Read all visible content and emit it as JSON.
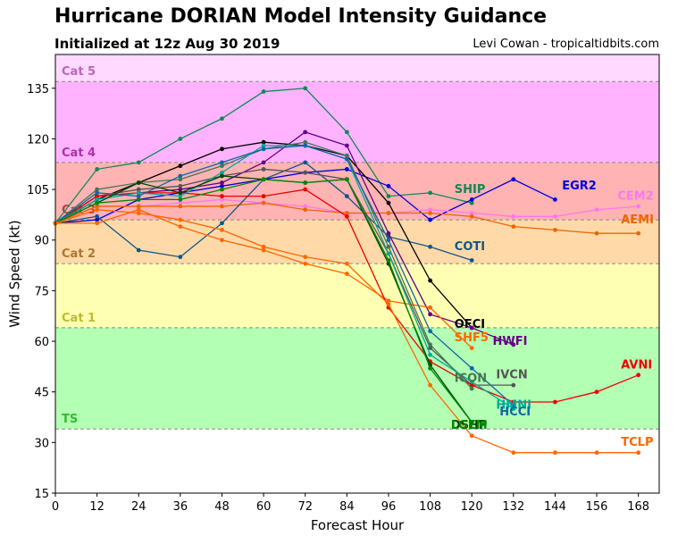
{
  "title": "Hurricane DORIAN Model Intensity Guidance",
  "subtitle": "Initialized at 12z Aug 30 2019",
  "credit": "Levi Cowan - tropicaltidbits.com",
  "chart_data": {
    "type": "line",
    "xlabel": "Forecast Hour",
    "ylabel": "Wind Speed (kt)",
    "xlim": [
      0,
      174
    ],
    "ylim": [
      15,
      145
    ],
    "xticks": [
      0,
      12,
      24,
      36,
      48,
      60,
      72,
      84,
      96,
      108,
      120,
      132,
      144,
      156,
      168
    ],
    "yticks": [
      15,
      30,
      45,
      60,
      75,
      90,
      105,
      120,
      135
    ],
    "grid": false,
    "bands": [
      {
        "label": "TS",
        "from": 34,
        "to": 64,
        "color": "#b3ffb3",
        "label_color": "#33bb33"
      },
      {
        "label": "Cat 1",
        "from": 64,
        "to": 83,
        "color": "#ffffb3",
        "label_color": "#bbbb33"
      },
      {
        "label": "Cat 2",
        "from": 83,
        "to": 96,
        "color": "#ffdaa8",
        "label_color": "#aa7733"
      },
      {
        "label": "Cat 3",
        "from": 96,
        "to": 113,
        "color": "#ffb3b3",
        "label_color": "#aa4444"
      },
      {
        "label": "Cat 4",
        "from": 113,
        "to": 137,
        "color": "#ffb3ff",
        "label_color": "#aa33aa"
      },
      {
        "label": "Cat 5",
        "from": 137,
        "to": 145,
        "color": "#ffd9ff",
        "label_color": "#bb66bb"
      }
    ],
    "series": [
      {
        "name": "SHIP",
        "color": "#118855",
        "x": [
          0,
          12,
          24,
          36,
          48,
          60,
          72,
          84,
          96,
          108,
          120
        ],
        "y": [
          95,
          111,
          113,
          120,
          126,
          134,
          135,
          122,
          103,
          104,
          101
        ],
        "label_x": 115,
        "label_y": 104
      },
      {
        "name": "EGR2",
        "color": "#0000dd",
        "x": [
          0,
          12,
          24,
          36,
          48,
          60,
          72,
          84,
          96,
          108,
          120,
          132,
          144
        ],
        "y": [
          95,
          96,
          102,
          104,
          106,
          108,
          110,
          111,
          106,
          96,
          102,
          108,
          102
        ],
        "label_x": 146,
        "label_y": 105
      },
      {
        "name": "CEM2",
        "color": "#ff77ee",
        "x": [
          0,
          12,
          24,
          36,
          48,
          60,
          72,
          84,
          96,
          108,
          120,
          132,
          144,
          156,
          168
        ],
        "y": [
          95,
          100,
          100,
          101,
          102,
          101,
          100,
          98,
          98,
          99,
          98,
          97,
          97,
          99,
          100
        ],
        "label_x": 162,
        "label_y": 102
      },
      {
        "name": "AEMI",
        "color": "#ee6600",
        "x": [
          0,
          12,
          24,
          36,
          48,
          60,
          72,
          84,
          96,
          108,
          120,
          132,
          144,
          156,
          168
        ],
        "y": [
          95,
          100,
          100,
          100,
          100,
          101,
          99,
          98,
          98,
          98,
          97,
          94,
          93,
          92,
          92
        ],
        "label_x": 163,
        "label_y": 95
      },
      {
        "name": "COTI",
        "color": "#115588",
        "x": [
          0,
          12,
          24,
          36,
          48,
          60,
          72,
          84,
          96,
          108,
          120
        ],
        "y": [
          95,
          97,
          87,
          85,
          95,
          108,
          113,
          103,
          91,
          88,
          84
        ],
        "label_x": 115,
        "label_y": 87
      },
      {
        "name": "OFCI",
        "color": "#000000",
        "x": [
          0,
          12,
          24,
          36,
          48,
          60,
          72,
          84,
          96,
          108,
          120
        ],
        "y": [
          95,
          102,
          107,
          112,
          117,
          119,
          118,
          115,
          101,
          78,
          64
        ],
        "label_x": 115,
        "label_y": 64
      },
      {
        "name": "HWFI",
        "color": "#660088",
        "x": [
          0,
          12,
          24,
          36,
          48,
          60,
          72,
          84,
          96,
          108,
          120,
          132
        ],
        "y": [
          95,
          103,
          104,
          105,
          107,
          113,
          122,
          118,
          92,
          68,
          64,
          59
        ],
        "label_x": 126,
        "label_y": 59
      },
      {
        "name": "SHF5",
        "color": "#ff6600",
        "x": [
          0,
          12,
          24,
          36,
          48,
          60,
          72,
          84,
          96,
          108,
          120
        ],
        "y": [
          95,
          95,
          99,
          94,
          90,
          87,
          83,
          80,
          72,
          70,
          58
        ],
        "label_x": 115,
        "label_y": 60
      },
      {
        "name": "IVCN",
        "color": "#555555",
        "x": [
          0,
          12,
          24,
          36,
          48,
          60,
          72,
          84,
          96,
          108,
          120,
          132
        ],
        "y": [
          95,
          103,
          105,
          106,
          109,
          111,
          110,
          108,
          86,
          58,
          47,
          47
        ],
        "label_x": 127,
        "label_y": 49
      },
      {
        "name": "AVNI",
        "color": "#ee0000",
        "x": [
          0,
          12,
          24,
          36,
          48,
          60,
          72,
          84,
          96,
          108,
          120,
          132,
          144,
          156,
          168
        ],
        "y": [
          95,
          103,
          104,
          104,
          103,
          103,
          105,
          97,
          70,
          54,
          47,
          42,
          42,
          45,
          50
        ],
        "label_x": 163,
        "label_y": 52
      },
      {
        "name": "ICON",
        "color": "#447755",
        "x": [
          0,
          12,
          24,
          36,
          48,
          60,
          72,
          84,
          96,
          108,
          120
        ],
        "y": [
          95,
          105,
          107,
          108,
          112,
          117,
          119,
          115,
          88,
          59,
          46
        ],
        "label_x": 115,
        "label_y": 48
      },
      {
        "name": "HMNI",
        "color": "#00aa99",
        "x": [
          0,
          12,
          24,
          36,
          48,
          60,
          72,
          84,
          96,
          108,
          120,
          132
        ],
        "y": [
          95,
          102,
          104,
          103,
          110,
          118,
          118,
          114,
          86,
          56,
          48,
          40
        ],
        "label_x": 127,
        "label_y": 40
      },
      {
        "name": "HCCI",
        "color": "#1166aa",
        "x": [
          0,
          12,
          24,
          36,
          48,
          60,
          72,
          84,
          96,
          108,
          120,
          132
        ],
        "y": [
          95,
          104,
          103,
          109,
          113,
          117,
          118,
          114,
          90,
          63,
          52,
          41
        ],
        "label_x": 128,
        "label_y": 38
      },
      {
        "name": "DSHP",
        "color": "#004400",
        "x": [
          0,
          12,
          24,
          36,
          48,
          60,
          72,
          84,
          96,
          108,
          120
        ],
        "y": [
          95,
          101,
          107,
          104,
          109,
          108,
          107,
          108,
          83,
          53,
          36
        ],
        "label_x": 114,
        "label_y": 34
      },
      {
        "name": "LGEM",
        "color": "#008800",
        "x": [
          0,
          12,
          24,
          36,
          48,
          60,
          72,
          84,
          96,
          108,
          120
        ],
        "y": [
          95,
          101,
          102,
          102,
          105,
          108,
          107,
          108,
          84,
          52,
          36
        ],
        "label_x": 114,
        "label_y": 34
      },
      {
        "name": "TCLP",
        "color": "#ff6600",
        "x": [
          0,
          12,
          24,
          36,
          48,
          60,
          72,
          84,
          96,
          108,
          120,
          132,
          144,
          156,
          168
        ],
        "y": [
          95,
          99,
          98,
          96,
          93,
          88,
          85,
          83,
          71,
          47,
          32,
          27,
          27,
          27,
          27
        ],
        "label_x": 163,
        "label_y": 29
      }
    ]
  }
}
